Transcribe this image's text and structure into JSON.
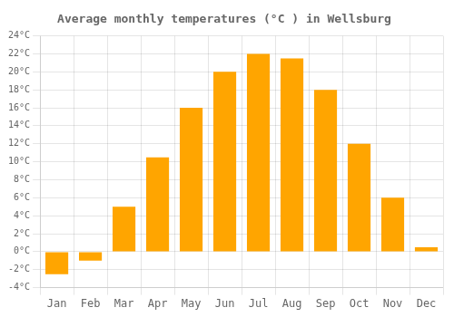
{
  "chart_data": {
    "type": "bar",
    "title": "Average monthly temperatures (°C ) in Wellsburg",
    "categories": [
      "Jan",
      "Feb",
      "Mar",
      "Apr",
      "May",
      "Jun",
      "Jul",
      "Aug",
      "Sep",
      "Oct",
      "Nov",
      "Dec"
    ],
    "values": [
      -2.5,
      -1.0,
      5.0,
      10.5,
      16.0,
      20.0,
      22.0,
      21.5,
      18.0,
      12.0,
      6.0,
      0.5
    ],
    "color": "#FFA500",
    "ylim": [
      -4,
      24
    ],
    "yticks": [
      {
        "value": -4,
        "label": "-4°C"
      },
      {
        "value": -2,
        "label": "-2°C"
      },
      {
        "value": 0,
        "label": "0°C"
      },
      {
        "value": 2,
        "label": "2°C"
      },
      {
        "value": 4,
        "label": "4°C"
      },
      {
        "value": 6,
        "label": "6°C"
      },
      {
        "value": 8,
        "label": "8°C"
      },
      {
        "value": 10,
        "label": "10°C"
      },
      {
        "value": 12,
        "label": "12°C"
      },
      {
        "value": 14,
        "label": "14°C"
      },
      {
        "value": 16,
        "label": "16°C"
      },
      {
        "value": 18,
        "label": "18°C"
      },
      {
        "value": 20,
        "label": "20°C"
      },
      {
        "value": 22,
        "label": "22°C"
      },
      {
        "value": 24,
        "label": "24°C"
      }
    ],
    "grid": true
  }
}
